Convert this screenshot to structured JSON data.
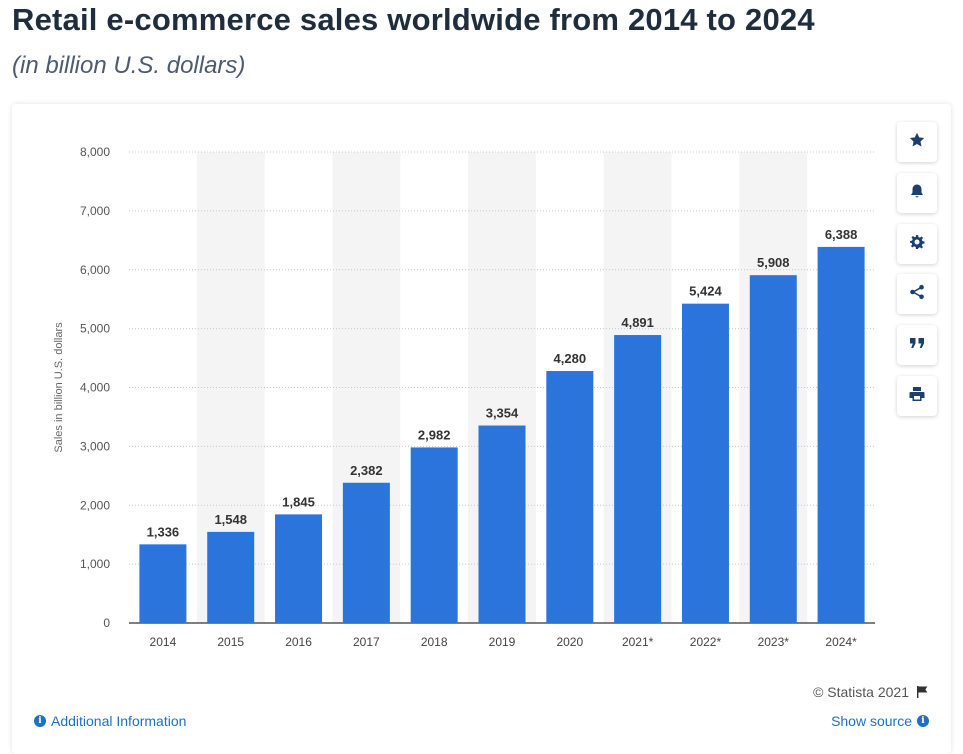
{
  "page": {
    "title": "Retail e-commerce sales worldwide from 2014 to 2024",
    "subtitle": "(in billion U.S. dollars)"
  },
  "chart_data": {
    "type": "bar",
    "categories": [
      "2014",
      "2015",
      "2016",
      "2017",
      "2018",
      "2019",
      "2020",
      "2021*",
      "2022*",
      "2023*",
      "2024*"
    ],
    "values": [
      1336,
      1548,
      1845,
      2382,
      2982,
      3354,
      4280,
      4891,
      5424,
      5908,
      6388
    ],
    "value_labels": [
      "1,336",
      "1,548",
      "1,845",
      "2,382",
      "2,982",
      "3,354",
      "4,280",
      "4,891",
      "5,424",
      "5,908",
      "6,388"
    ],
    "xlabel": "",
    "ylabel": "Sales in billion U.S. dollars",
    "ylim": [
      0,
      8000
    ],
    "yticks": [
      0,
      1000,
      2000,
      3000,
      4000,
      5000,
      6000,
      7000,
      8000
    ],
    "ytick_labels": [
      "0",
      "1,000",
      "2,000",
      "3,000",
      "4,000",
      "5,000",
      "6,000",
      "7,000",
      "8,000"
    ],
    "grid": true,
    "legend": "none",
    "bar_color": "#2a74dc",
    "band_color": "#f4f4f4"
  },
  "toolbar": {
    "buttons": [
      {
        "name": "favorite",
        "icon": "star-icon"
      },
      {
        "name": "notification",
        "icon": "bell-icon"
      },
      {
        "name": "settings",
        "icon": "gear-icon"
      },
      {
        "name": "share",
        "icon": "share-icon"
      },
      {
        "name": "cite",
        "icon": "quote-icon"
      },
      {
        "name": "print",
        "icon": "print-icon"
      }
    ]
  },
  "footer": {
    "copyright": "© Statista 2021",
    "additional_info": "Additional Information",
    "show_source": "Show source",
    "link_color": "#1f6fc5"
  }
}
